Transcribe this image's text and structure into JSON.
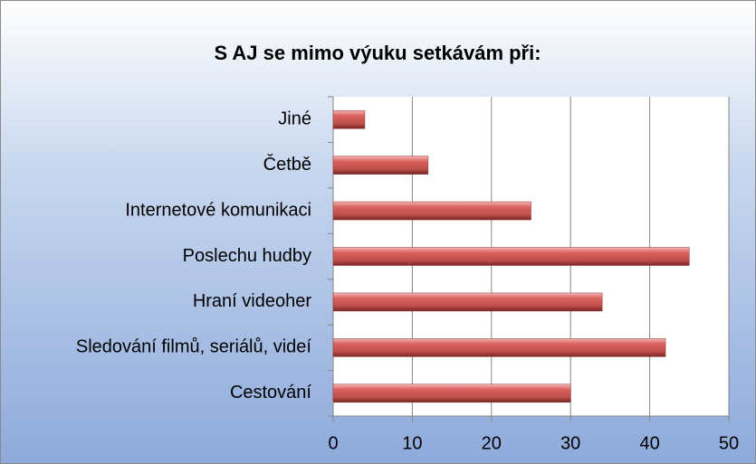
{
  "chart_data": {
    "type": "bar",
    "orientation": "horizontal",
    "title": "S AJ se mimo výuku setkávám při:",
    "categories": [
      "Jiné",
      "Četbě",
      "Internetové komunikaci",
      "Poslechu hudby",
      "Hraní videoher",
      "Sledování filmů, seriálů, videí",
      "Cestování"
    ],
    "values": [
      4,
      12,
      25,
      45,
      34,
      42,
      30
    ],
    "color": "#c0504d",
    "xlim": [
      0,
      50
    ],
    "xticks": [
      0,
      10,
      20,
      30,
      40,
      50
    ],
    "grid": true
  }
}
